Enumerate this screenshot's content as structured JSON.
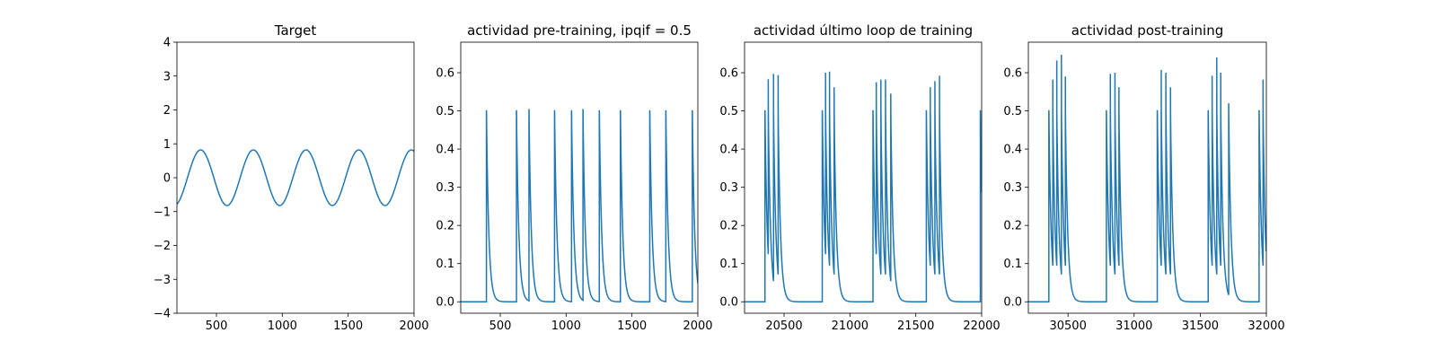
{
  "chart_data": [
    {
      "type": "line",
      "title": "Target",
      "xlim": [
        200,
        2000
      ],
      "ylim": [
        -4,
        4
      ],
      "xticks": [
        500,
        1000,
        1500,
        2000
      ],
      "yticks": [
        -4,
        -3,
        -2,
        -1,
        0,
        1,
        2,
        3,
        4
      ],
      "xtick_labels": [
        "500",
        "1000",
        "1500",
        "2000"
      ],
      "ytick_labels": [
        "−4",
        "−3",
        "−2",
        "−1",
        "0",
        "1",
        "2",
        "3",
        "4"
      ],
      "series": [
        {
          "kind": "sine",
          "amplitude": 0.82,
          "period": 400,
          "phase": -180,
          "x_range": [
            200,
            2000
          ],
          "color": "#1f77b4"
        }
      ]
    },
    {
      "type": "line",
      "title": "actividad pre-training, ipqif = 0.5",
      "xlim": [
        200,
        2000
      ],
      "ylim": [
        -0.03,
        0.68
      ],
      "xticks": [
        500,
        1000,
        1500,
        2000
      ],
      "yticks": [
        0.0,
        0.1,
        0.2,
        0.3,
        0.4,
        0.5,
        0.6
      ],
      "xtick_labels": [
        "500",
        "1000",
        "1500",
        "2000"
      ],
      "ytick_labels": [
        "0.0",
        "0.1",
        "0.2",
        "0.3",
        "0.4",
        "0.5",
        "0.6"
      ],
      "series": [
        {
          "kind": "spikes",
          "baseline": 0,
          "x_range": [
            200,
            2000
          ],
          "decay": 18,
          "reset": 0.5,
          "spikes": [
            {
              "x": 395,
              "peak": 0.5
            },
            {
              "x": 623,
              "peak": 0.5
            },
            {
              "x": 718,
              "peak": 0.505
            },
            {
              "x": 912,
              "peak": 0.5
            },
            {
              "x": 1041,
              "peak": 0.5
            },
            {
              "x": 1128,
              "peak": 0.505
            },
            {
              "x": 1252,
              "peak": 0.5
            },
            {
              "x": 1412,
              "peak": 0.5
            },
            {
              "x": 1635,
              "peak": 0.5
            },
            {
              "x": 1757,
              "peak": 0.5
            },
            {
              "x": 1958,
              "peak": 0.5
            }
          ],
          "color": "#1f77b4"
        }
      ]
    },
    {
      "type": "line",
      "title": "actividad último loop de training",
      "xlim": [
        20200,
        22000
      ],
      "ylim": [
        -0.03,
        0.68
      ],
      "xticks": [
        20500,
        21000,
        21500,
        22000
      ],
      "yticks": [
        0.0,
        0.1,
        0.2,
        0.3,
        0.4,
        0.5,
        0.6
      ],
      "xtick_labels": [
        "20500",
        "21000",
        "21500",
        "22000"
      ],
      "ytick_labels": [
        "0.0",
        "0.1",
        "0.2",
        "0.3",
        "0.4",
        "0.5",
        "0.6"
      ],
      "series": [
        {
          "kind": "spikes",
          "baseline": 0,
          "x_range": [
            20200,
            22000
          ],
          "decay": 18,
          "reset": 0.5,
          "spikes": [
            {
              "x": 20355,
              "peak": 0.5
            },
            {
              "x": 20380,
              "peak": 0.583
            },
            {
              "x": 20420,
              "peak": 0.597
            },
            {
              "x": 20455,
              "peak": 0.594
            },
            {
              "x": 20790,
              "peak": 0.5
            },
            {
              "x": 20815,
              "peak": 0.6
            },
            {
              "x": 20845,
              "peak": 0.603
            },
            {
              "x": 20880,
              "peak": 0.562
            },
            {
              "x": 21175,
              "peak": 0.5
            },
            {
              "x": 21200,
              "peak": 0.575
            },
            {
              "x": 21235,
              "peak": 0.582
            },
            {
              "x": 21270,
              "peak": 0.582
            },
            {
              "x": 21310,
              "peak": 0.545
            },
            {
              "x": 21580,
              "peak": 0.5
            },
            {
              "x": 21610,
              "peak": 0.562
            },
            {
              "x": 21645,
              "peak": 0.578
            },
            {
              "x": 21680,
              "peak": 0.592
            },
            {
              "x": 21990,
              "peak": 0.5
            }
          ],
          "color": "#1f77b4"
        }
      ]
    },
    {
      "type": "line",
      "title": "actividad post-training",
      "xlim": [
        30200,
        32000
      ],
      "ylim": [
        -0.03,
        0.68
      ],
      "xticks": [
        30500,
        31000,
        31500,
        32000
      ],
      "yticks": [
        0.0,
        0.1,
        0.2,
        0.3,
        0.4,
        0.5,
        0.6
      ],
      "xtick_labels": [
        "30500",
        "31000",
        "31500",
        "32000"
      ],
      "ytick_labels": [
        "0.0",
        "0.1",
        "0.2",
        "0.3",
        "0.4",
        "0.5",
        "0.6"
      ],
      "series": [
        {
          "kind": "spikes",
          "baseline": 0,
          "x_range": [
            30200,
            32000
          ],
          "decay": 18,
          "reset": 0.5,
          "spikes": [
            {
              "x": 30355,
              "peak": 0.5
            },
            {
              "x": 30385,
              "peak": 0.582
            },
            {
              "x": 30415,
              "peak": 0.632
            },
            {
              "x": 30450,
              "peak": 0.647
            },
            {
              "x": 30480,
              "peak": 0.59
            },
            {
              "x": 30790,
              "peak": 0.5
            },
            {
              "x": 30820,
              "peak": 0.597
            },
            {
              "x": 30855,
              "peak": 0.6
            },
            {
              "x": 30885,
              "peak": 0.562
            },
            {
              "x": 31175,
              "peak": 0.5
            },
            {
              "x": 31205,
              "peak": 0.607
            },
            {
              "x": 31240,
              "peak": 0.6
            },
            {
              "x": 31275,
              "peak": 0.562
            },
            {
              "x": 31560,
              "peak": 0.5
            },
            {
              "x": 31590,
              "peak": 0.592
            },
            {
              "x": 31625,
              "peak": 0.64
            },
            {
              "x": 31655,
              "peak": 0.6
            },
            {
              "x": 31715,
              "peak": 0.52
            },
            {
              "x": 31945,
              "peak": 0.5
            },
            {
              "x": 31975,
              "peak": 0.582
            }
          ],
          "color": "#1f77b4"
        }
      ]
    }
  ]
}
